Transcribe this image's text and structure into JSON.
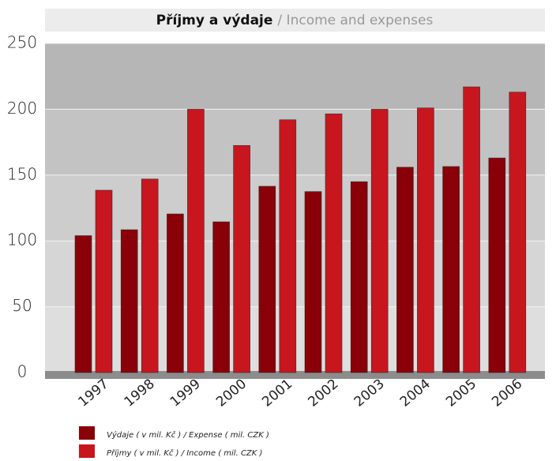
{
  "chart_data": {
    "type": "bar",
    "title": "Příjmy a výdaje",
    "title_en": "/ Income and expenses",
    "categories": [
      "1997",
      "1998",
      "1999",
      "2000",
      "2001",
      "2002",
      "2003",
      "2004",
      "2005",
      "2006"
    ],
    "series": [
      {
        "name": "Výdaje ( v mil. Kč ) / Expense ( mil. CZK )",
        "color": "#8a0008",
        "values": [
          104,
          108.5,
          120.5,
          114.5,
          141.5,
          137.5,
          145,
          156,
          156.5,
          163
        ]
      },
      {
        "name": "Příjmy ( v mil. Kč ) / Income ( mil. CZK )",
        "color": "#c8161e",
        "values": [
          138.5,
          147,
          200,
          172.5,
          192,
          196.5,
          200,
          201,
          217,
          213
        ]
      }
    ],
    "ylim": [
      0,
      250
    ],
    "yticks": [
      0,
      50,
      100,
      150,
      200,
      250
    ],
    "grid": true
  }
}
